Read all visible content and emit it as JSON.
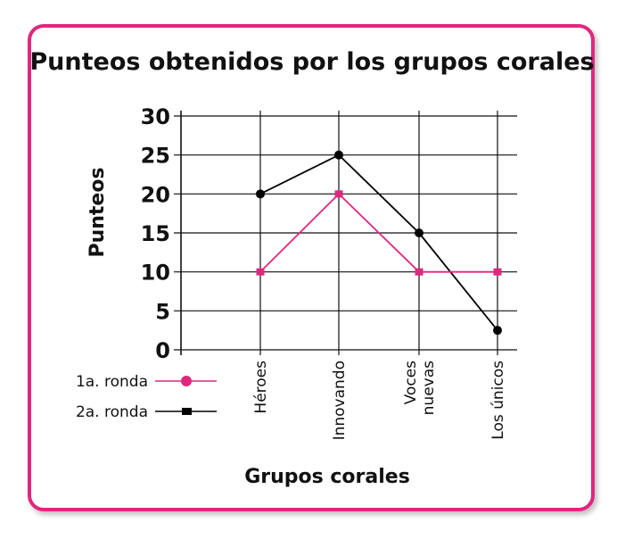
{
  "chart_data": {
    "type": "line",
    "title": "Punteos obtenidos por los grupos corales",
    "xlabel": "Grupos corales",
    "ylabel": "Punteos",
    "categories": [
      [
        "Héroes"
      ],
      [
        "Innovando"
      ],
      [
        "Voces",
        "nuevas"
      ],
      [
        "Los únicos"
      ]
    ],
    "y_ticks": [
      0,
      5,
      10,
      15,
      20,
      25,
      30
    ],
    "ylim": [
      0,
      30
    ],
    "grid": true,
    "legend_position": "bottom-left",
    "series": [
      {
        "name": "1a. ronda",
        "color": "#e0277f",
        "marker": "square",
        "values": [
          10,
          20,
          10,
          10
        ]
      },
      {
        "name": "2a. ronda",
        "color": "#000000",
        "marker": "circle",
        "values": [
          20,
          25,
          15,
          2.5
        ]
      }
    ]
  },
  "frame": {
    "border_color": "#e0277f"
  }
}
